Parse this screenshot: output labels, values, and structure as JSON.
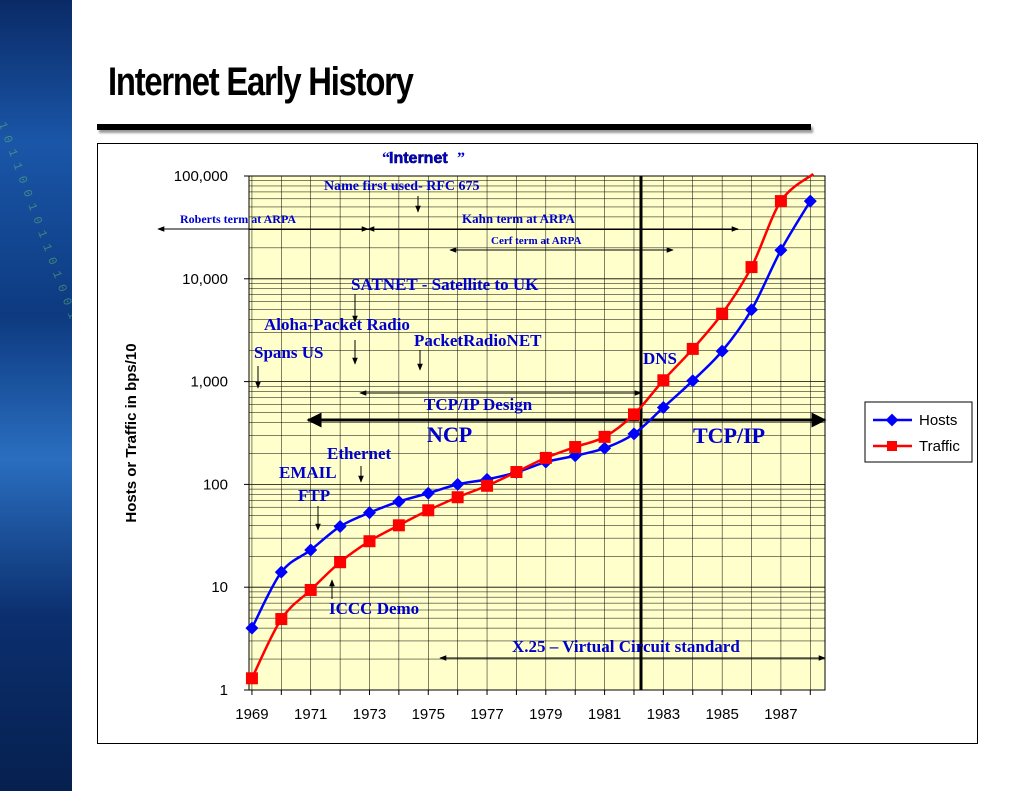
{
  "slide": {
    "title": "Internet Early History"
  },
  "chart_data": {
    "type": "line",
    "ylabel": "Hosts or Traffic in bps/10",
    "xlabel": "",
    "y_scale": "log",
    "ylim": [
      1,
      100000
    ],
    "xlim": [
      1968.9,
      1988.5
    ],
    "y_ticks": [
      {
        "value": 1,
        "label": "1"
      },
      {
        "value": 10,
        "label": "10"
      },
      {
        "value": 100,
        "label": "100"
      },
      {
        "value": 1000,
        "label": "1,000"
      },
      {
        "value": 10000,
        "label": "10,000"
      },
      {
        "value": 100000,
        "label": "100,000"
      }
    ],
    "x_ticks": [
      "1969",
      "1971",
      "1973",
      "1975",
      "1977",
      "1979",
      "1981",
      "1983",
      "1985",
      "1987"
    ],
    "grid": true,
    "legend_position": "right",
    "series": [
      {
        "name": "Hosts",
        "color": "#0000ff",
        "marker": "diamond",
        "x": [
          1969,
          1970,
          1971,
          1972,
          1973,
          1974,
          1975,
          1976,
          1977,
          1978,
          1979,
          1980,
          1981,
          1982,
          1983,
          1984,
          1985,
          1986,
          1987,
          1988
        ],
        "values": [
          4,
          14,
          23,
          39,
          53,
          68,
          82,
          100,
          112,
          131,
          165,
          190,
          225,
          310,
          560,
          1020,
          1980,
          5000,
          19000,
          57000
        ]
      },
      {
        "name": "Traffic",
        "color": "#ff0000",
        "marker": "square",
        "x": [
          1969,
          1970,
          1971,
          1972,
          1973,
          1974,
          1975,
          1976,
          1977,
          1978,
          1979,
          1980,
          1981,
          1982,
          1983,
          1984,
          1985,
          1986,
          1987
        ],
        "values": [
          1.3,
          4.9,
          9.4,
          17.5,
          28,
          40,
          56,
          75,
          97,
          132,
          181,
          231,
          290,
          480,
          1030,
          2080,
          4580,
          13000,
          57000
        ],
        "tail_to": {
          "x": 1988.1,
          "value": 175000
        }
      }
    ],
    "labels": {
      "quote_left": "“",
      "quote_right": "”",
      "internet": "Internet",
      "rfc": "Name first used- RFC 675",
      "roberts": "Roberts term at ARPA",
      "kahn": "Kahn term at ARPA",
      "cerf": "Cerf term at ARPA",
      "satnet": "SATNET - Satellite to UK",
      "aloha": "Aloha-Packet Radio",
      "packetradio": "PacketRadioNET",
      "spans": "Spans US",
      "dns": "DNS",
      "tcpip_design": "TCP/IP Design",
      "ncp": "NCP",
      "tcpip": "TCP/IP",
      "ethernet": "Ethernet",
      "email": "EMAIL",
      "ftp": "FTP",
      "iccc": "ICCC Demo",
      "x25": "X.25 – Virtual Circuit standard"
    }
  }
}
